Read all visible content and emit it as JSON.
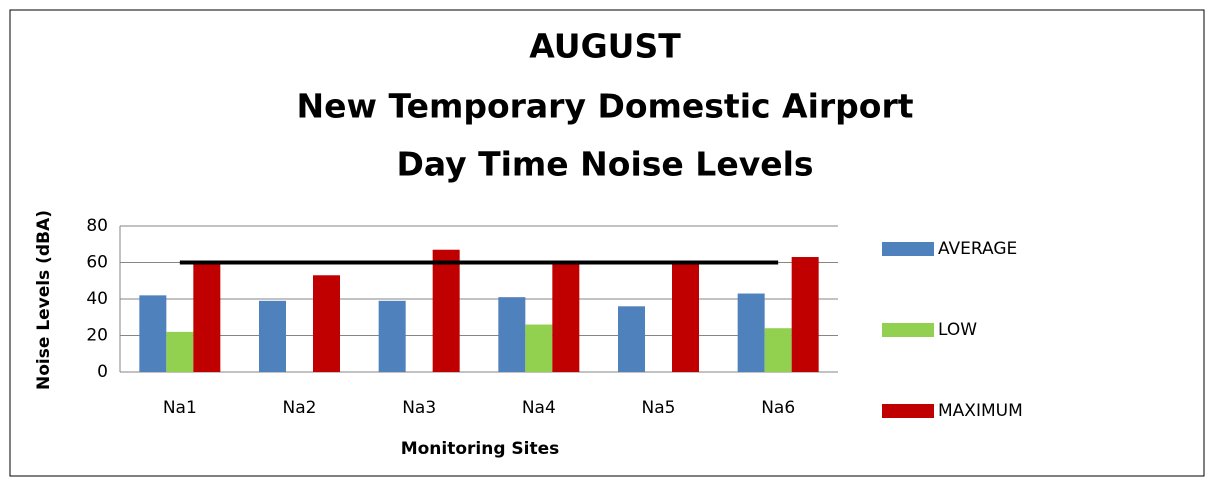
{
  "chart_data": {
    "type": "bar",
    "title": [
      "AUGUST",
      "New Temporary Domestic Airport",
      "Day Time Noise Levels"
    ],
    "x_label": "Monitoring Sites",
    "y_label": "Noise Levels (dBA)",
    "categories": [
      "Na1",
      "Na2",
      "Na3",
      "Na4",
      "Na5",
      "Na6"
    ],
    "series": [
      {
        "name": "AVERAGE",
        "color": "#4f81bd",
        "values": [
          42,
          39,
          39,
          41,
          36,
          43
        ]
      },
      {
        "name": "LOW",
        "color": "#92d050",
        "values": [
          22,
          null,
          null,
          26,
          null,
          24
        ]
      },
      {
        "name": "MAXIMUM",
        "color": "#c00000",
        "values": [
          59,
          53,
          67,
          59,
          59,
          63
        ]
      }
    ],
    "threshold": 60,
    "ylim": [
      0,
      80
    ],
    "yticks": [
      0,
      20,
      40,
      60,
      80
    ],
    "grid": true,
    "legend": "right"
  }
}
